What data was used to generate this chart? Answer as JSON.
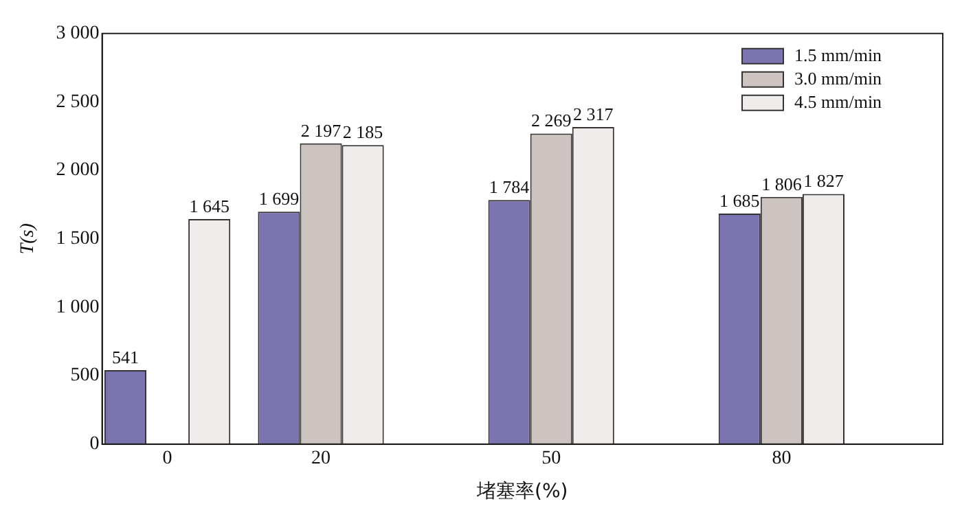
{
  "chart_data": {
    "type": "bar",
    "xlabel": "堵塞率(%)",
    "ylabel": "T(s)",
    "x": [
      0,
      20,
      50,
      80
    ],
    "xlim": [
      -8.5,
      101
    ],
    "xticks": [
      0,
      20,
      50,
      80
    ],
    "ylim": [
      0,
      3000
    ],
    "yticks": [
      {
        "value": 0,
        "label": "0"
      },
      {
        "value": 500,
        "label": "500"
      },
      {
        "value": 1000,
        "label": "1 000"
      },
      {
        "value": 1500,
        "label": "1 500"
      },
      {
        "value": 2000,
        "label": "2 000"
      },
      {
        "value": 2500,
        "label": "2 500"
      },
      {
        "value": 3000,
        "label": "3 000"
      }
    ],
    "grid": false,
    "legend": "top right",
    "series": [
      {
        "name": "1.5 mm/min",
        "color": "#7b74b0",
        "values": [
          541,
          1699,
          1784,
          1685
        ],
        "value_labels": [
          "541",
          "1 699",
          "1 784",
          "1 685"
        ]
      },
      {
        "name": "3.0 mm/min",
        "color": "#cdc3c0",
        "values": [
          null,
          2197,
          2269,
          1806
        ],
        "value_labels": [
          null,
          "2 197",
          "2 269",
          "1 806"
        ]
      },
      {
        "name": "4.5 mm/min",
        "color": "#f0ecec",
        "values": [
          1645,
          2185,
          2317,
          1827
        ],
        "value_labels": [
          "1 645",
          "2 185",
          "2 317",
          "1 827"
        ]
      }
    ]
  }
}
